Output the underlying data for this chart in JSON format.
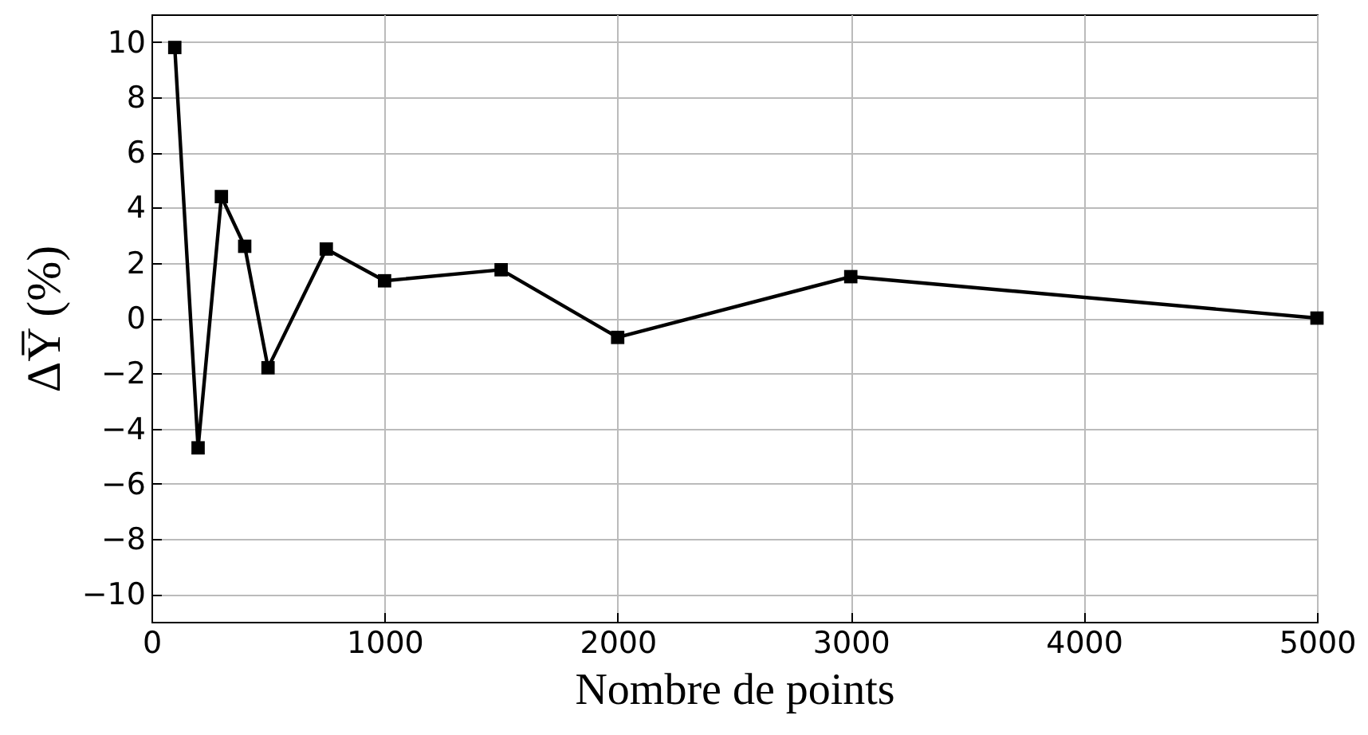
{
  "chart_data": {
    "type": "line",
    "xlabel": "Nombre de points",
    "ylabel": "ΔY̅ (%)",
    "x": [
      100,
      200,
      300,
      400,
      500,
      750,
      1000,
      1500,
      2000,
      3000,
      5000
    ],
    "series": [
      {
        "color": "#000000",
        "values": [
          9.8,
          -4.7,
          4.4,
          2.6,
          -1.8,
          2.5,
          1.35,
          1.75,
          -0.7,
          1.5,
          0
        ]
      }
    ],
    "xlim": [
      0,
      5000
    ],
    "xticks": [
      0,
      1000,
      2000,
      3000,
      4000,
      5000
    ],
    "ylim": [
      -11,
      11
    ],
    "yticks": [
      -10,
      -8,
      -6,
      -4,
      -2,
      0,
      2,
      4,
      6,
      8,
      10
    ],
    "grid": true,
    "marker": "square",
    "line_style": "solid"
  }
}
